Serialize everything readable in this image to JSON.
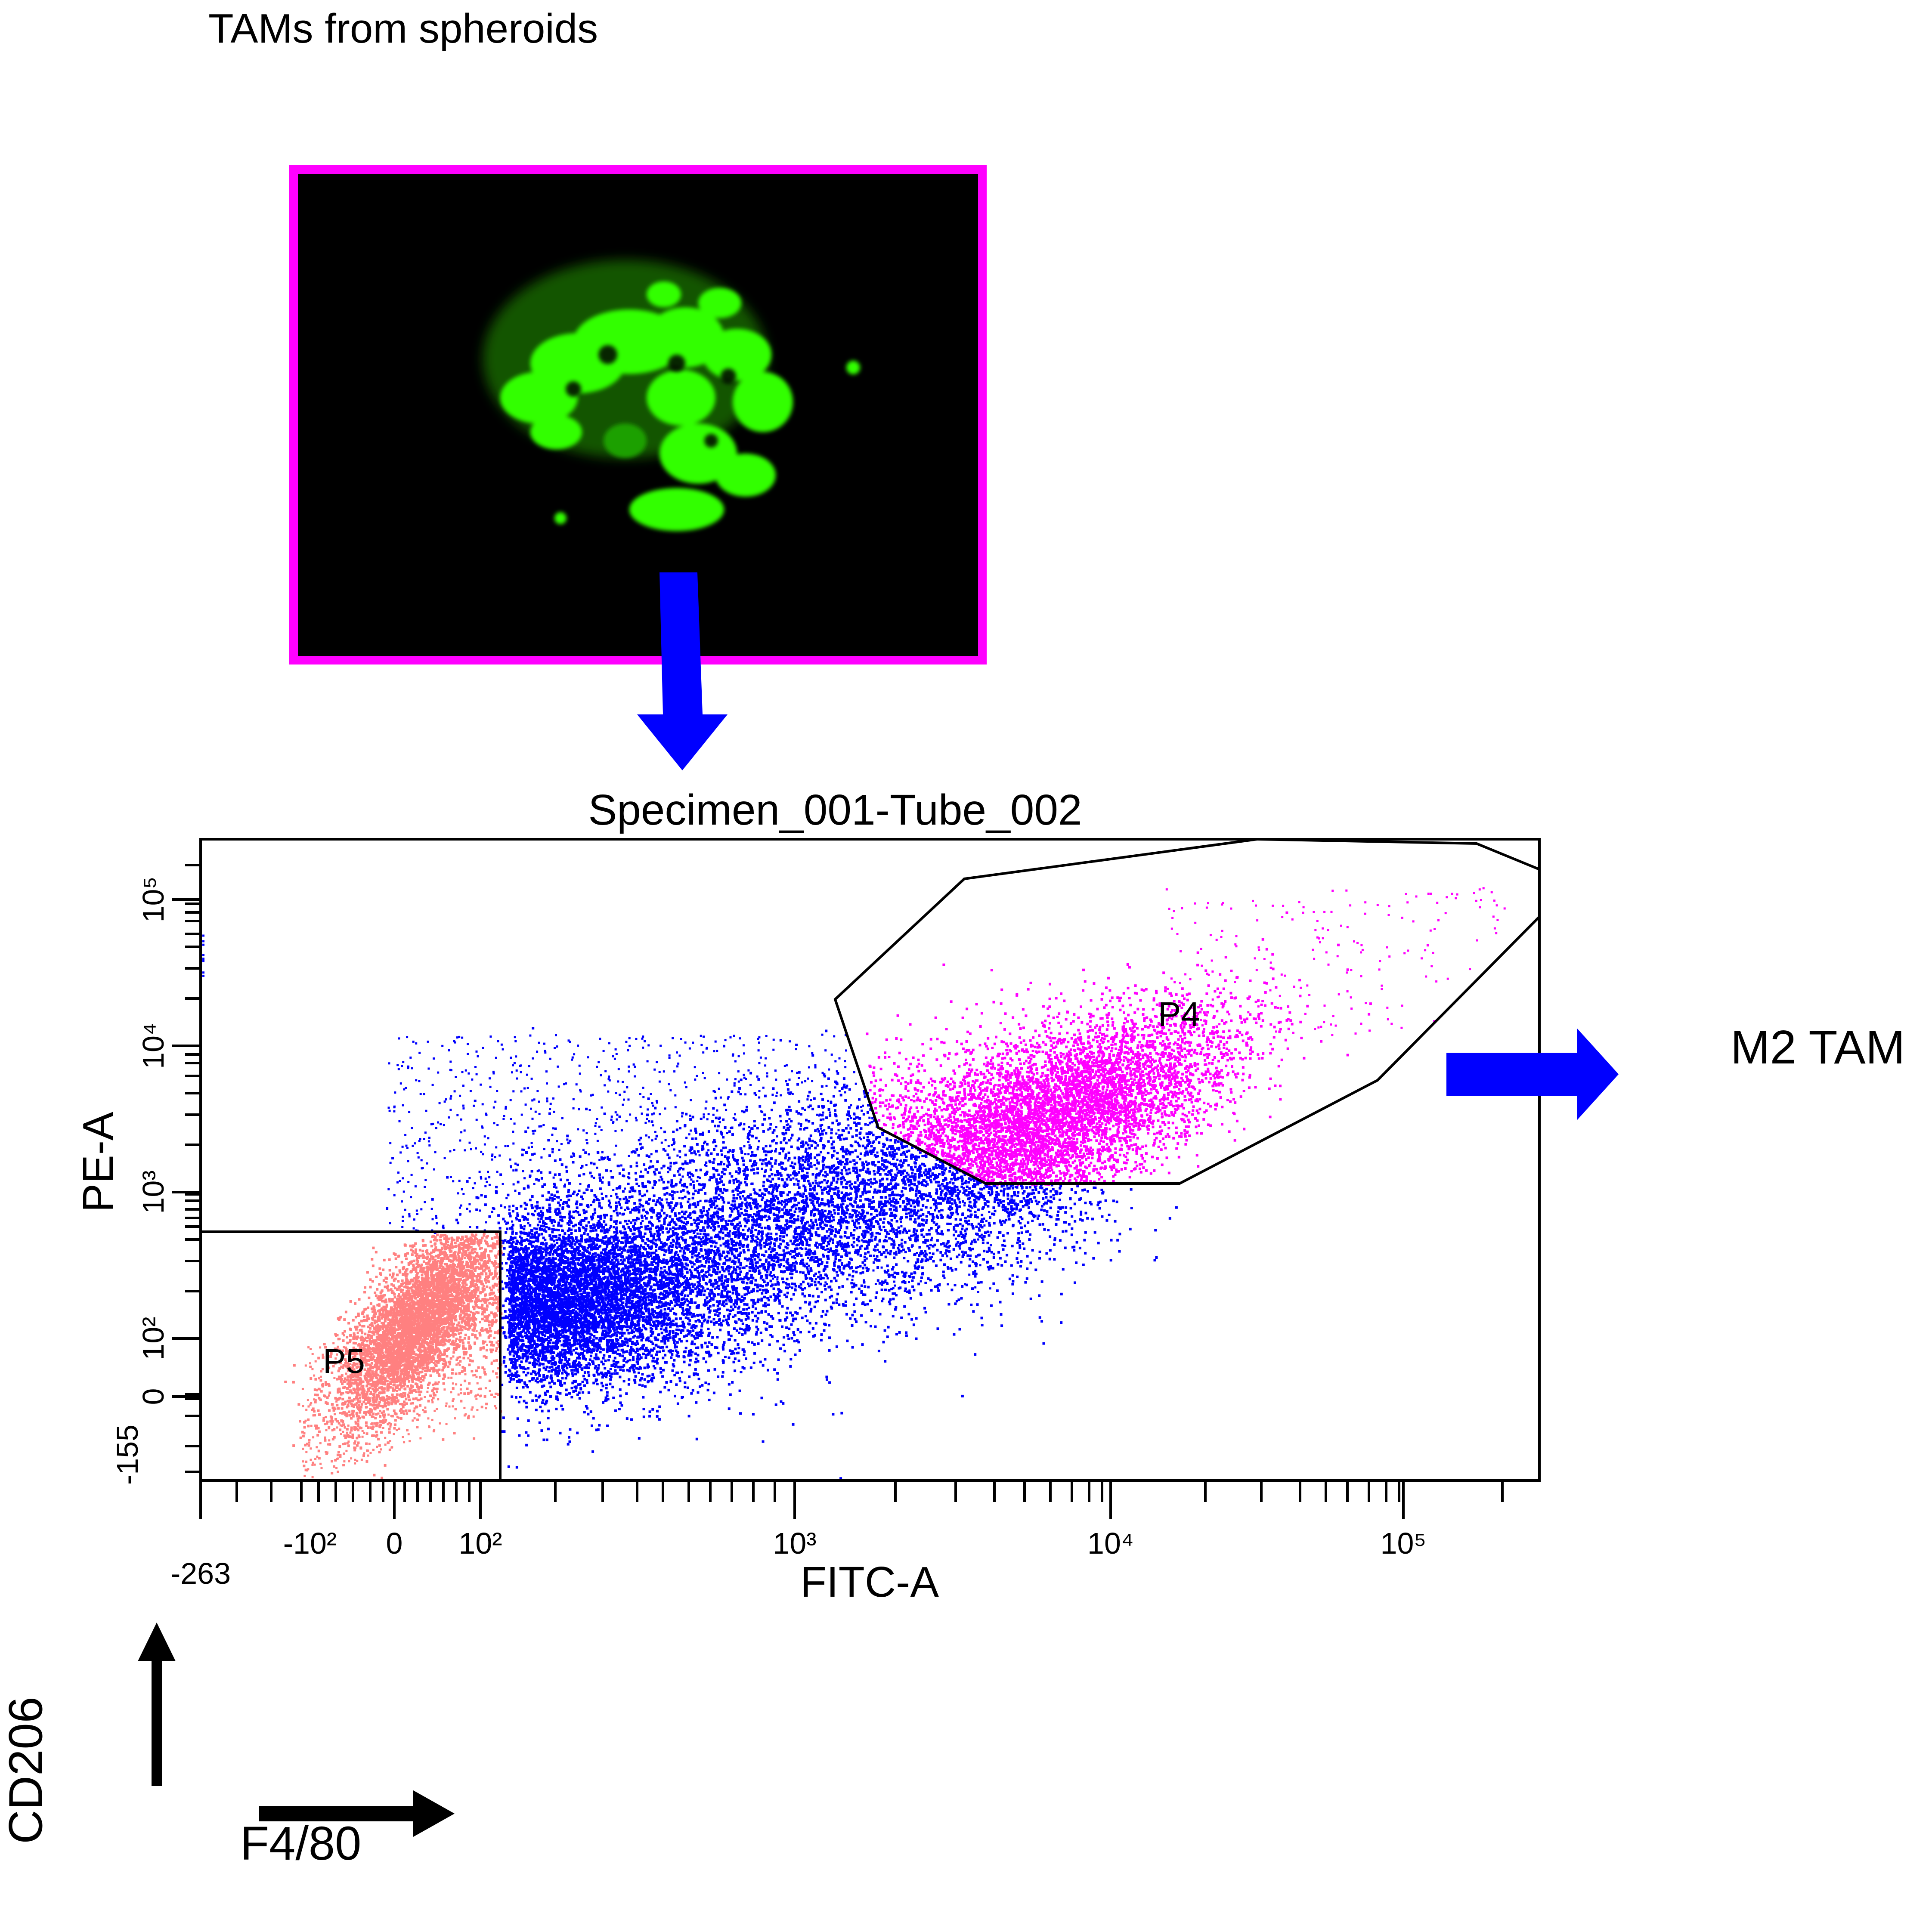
{
  "header": {
    "title": "TAMs from spheroids"
  },
  "flow_plot": {
    "title": "Specimen_001-Tube_002",
    "x_axis_label": "FITC-A",
    "y_axis_label": "PE-A",
    "x_ticks": [
      "-263",
      "-10²",
      "0",
      "10²",
      "10³",
      "10⁴",
      "10⁵"
    ],
    "y_ticks": [
      "-155",
      "0",
      "10²",
      "10³",
      "10⁴",
      "10⁵"
    ],
    "gates": [
      {
        "name": "P4",
        "color": "#ff00ff"
      },
      {
        "name": "P5",
        "color": "#ff8080"
      }
    ],
    "ungated_color": "#0000ff"
  },
  "annotations": {
    "m2_tam": "M2 TAM",
    "cd206": "CD206",
    "f4_80": "F4/80"
  },
  "colors": {
    "arrow_blue": "#0000ff",
    "frame_magenta": "#ff00ff",
    "fluorescence_green": "#33ff00"
  }
}
